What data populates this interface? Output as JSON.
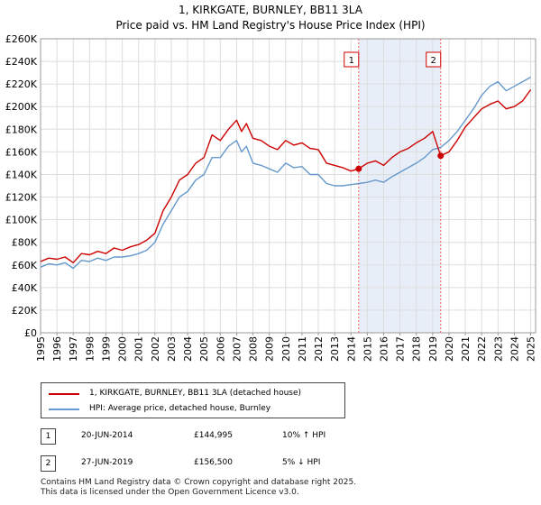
{
  "chart_data": {
    "type": "line",
    "title": "1, KIRKGATE, BURNLEY, BB11 3LA",
    "subtitle": "Price paid vs. HM Land Registry's House Price Index (HPI)",
    "xlabel": "",
    "ylabel": "",
    "xlim": [
      1995,
      2025.3
    ],
    "ylim": [
      0,
      260000
    ],
    "y_ticks": [
      0,
      20000,
      40000,
      60000,
      80000,
      100000,
      120000,
      140000,
      160000,
      180000,
      200000,
      220000,
      240000,
      260000
    ],
    "y_tick_labels": [
      "£0",
      "£20K",
      "£40K",
      "£60K",
      "£80K",
      "£100K",
      "£120K",
      "£140K",
      "£160K",
      "£180K",
      "£200K",
      "£220K",
      "£240K",
      "£260K"
    ],
    "x_ticks": [
      1995,
      1996,
      1997,
      1998,
      1999,
      2000,
      2001,
      2002,
      2003,
      2004,
      2005,
      2006,
      2007,
      2008,
      2009,
      2010,
      2011,
      2012,
      2013,
      2014,
      2015,
      2016,
      2017,
      2018,
      2019,
      2020,
      2021,
      2022,
      2023,
      2024,
      2025
    ],
    "x_tick_labels": [
      "1995",
      "1996",
      "1997",
      "1998",
      "1999",
      "2000",
      "2001",
      "2002",
      "2003",
      "2004",
      "2005",
      "2006",
      "2007",
      "2008",
      "2009",
      "2010",
      "2011",
      "2012",
      "2013",
      "2014",
      "2015",
      "2016",
      "2017",
      "2018",
      "2019",
      "2020",
      "2021",
      "2022",
      "2023",
      "2024",
      "2025"
    ],
    "grid": true,
    "series": [
      {
        "name": "1, KIRKGATE, BURNLEY, BB11 3LA (detached house)",
        "color": "#cc0000",
        "x": [
          1995.0,
          1995.5,
          1996.0,
          1996.5,
          1997.0,
          1997.5,
          1998.0,
          1998.5,
          1999.0,
          1999.5,
          2000.0,
          2000.5,
          2001.0,
          2001.5,
          2002.0,
          2002.5,
          2003.0,
          2003.5,
          2004.0,
          2004.5,
          2005.0,
          2005.5,
          2006.0,
          2006.5,
          2007.0,
          2007.3,
          2007.6,
          2008.0,
          2008.5,
          2009.0,
          2009.5,
          2010.0,
          2010.5,
          2011.0,
          2011.5,
          2012.0,
          2012.5,
          2013.0,
          2013.5,
          2014.0,
          2014.47,
          2015.0,
          2015.5,
          2016.0,
          2016.5,
          2017.0,
          2017.5,
          2018.0,
          2018.5,
          2019.0,
          2019.49,
          2020.0,
          2020.5,
          2021.0,
          2021.5,
          2022.0,
          2022.5,
          2023.0,
          2023.5,
          2024.0,
          2024.5,
          2025.0
        ],
        "values": [
          63000,
          66000,
          65000,
          67000,
          62000,
          70000,
          69000,
          72000,
          70000,
          75000,
          73000,
          76000,
          78000,
          82000,
          88000,
          108000,
          120000,
          135000,
          140000,
          150000,
          155000,
          175000,
          170000,
          180000,
          188000,
          178000,
          185000,
          172000,
          170000,
          165000,
          162000,
          170000,
          166000,
          168000,
          163000,
          162000,
          150000,
          148000,
          146000,
          143000,
          144995,
          150000,
          152000,
          148000,
          155000,
          160000,
          163000,
          168000,
          172000,
          178000,
          156500,
          160000,
          170000,
          182000,
          190000,
          198000,
          202000,
          205000,
          198000,
          200000,
          205000,
          215000
        ]
      },
      {
        "name": "HPI: Average price, detached house, Burnley",
        "color": "#6699cc",
        "x": [
          1995.0,
          1995.5,
          1996.0,
          1996.5,
          1997.0,
          1997.5,
          1998.0,
          1998.5,
          1999.0,
          1999.5,
          2000.0,
          2000.5,
          2001.0,
          2001.5,
          2002.0,
          2002.5,
          2003.0,
          2003.5,
          2004.0,
          2004.5,
          2005.0,
          2005.5,
          2006.0,
          2006.5,
          2007.0,
          2007.3,
          2007.6,
          2008.0,
          2008.5,
          2009.0,
          2009.5,
          2010.0,
          2010.5,
          2011.0,
          2011.5,
          2012.0,
          2012.5,
          2013.0,
          2013.5,
          2014.0,
          2014.47,
          2015.0,
          2015.5,
          2016.0,
          2016.5,
          2017.0,
          2017.5,
          2018.0,
          2018.5,
          2019.0,
          2019.49,
          2020.0,
          2020.5,
          2021.0,
          2021.5,
          2022.0,
          2022.5,
          2023.0,
          2023.5,
          2024.0,
          2024.5,
          2025.0
        ],
        "values": [
          58000,
          61000,
          60000,
          62000,
          57000,
          64000,
          63000,
          66000,
          64000,
          67000,
          67000,
          68000,
          70000,
          73000,
          80000,
          96000,
          108000,
          120000,
          125000,
          135000,
          140000,
          155000,
          155000,
          165000,
          170000,
          160000,
          165000,
          150000,
          148000,
          145000,
          142000,
          150000,
          146000,
          147000,
          140000,
          140000,
          132000,
          130000,
          130000,
          131000,
          132000,
          133000,
          135000,
          133000,
          138000,
          142000,
          146000,
          150000,
          155000,
          162000,
          164000,
          170000,
          178000,
          188000,
          198000,
          210000,
          218000,
          222000,
          214000,
          218000,
          222000,
          226000
        ]
      }
    ],
    "shaded_region": [
      2014.47,
      2019.49
    ],
    "markers": [
      {
        "label": "1",
        "x": 2014.47,
        "value": 144995
      },
      {
        "label": "2",
        "x": 2019.49,
        "value": 156500
      }
    ]
  },
  "legend": {
    "items": [
      {
        "label": "1, KIRKGATE, BURNLEY, BB11 3LA (detached house)",
        "color": "#cc0000"
      },
      {
        "label": "HPI: Average price, detached house, Burnley",
        "color": "#6699cc"
      }
    ]
  },
  "sales": [
    {
      "num": "1",
      "date": "20-JUN-2014",
      "price": "£144,995",
      "hpi": "10% ↑ HPI"
    },
    {
      "num": "2",
      "date": "27-JUN-2019",
      "price": "£156,500",
      "hpi": "5% ↓ HPI"
    }
  ],
  "footer": {
    "line1": "Contains HM Land Registry data © Crown copyright and database right 2025.",
    "line2": "This data is licensed under the Open Government Licence v3.0."
  }
}
